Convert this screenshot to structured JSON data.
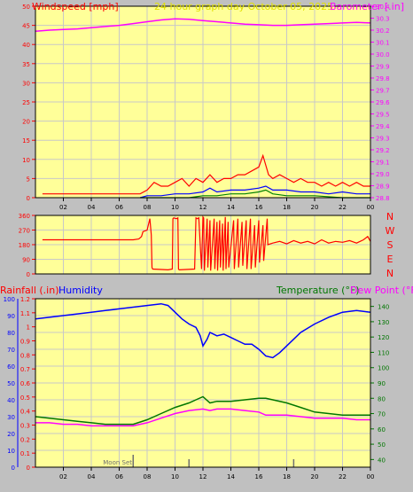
{
  "colors": {
    "background": "#c0c0c0",
    "panel": "#ffff99",
    "grid": "#c8c8c8",
    "windspeed": "#ff0000",
    "wind_avg": "#0000ff",
    "wind_low": "#008000",
    "barometer": "#ff00ff",
    "title": "#e0e000",
    "direction": "#ff0000",
    "rain_label": "#ff0000",
    "humidity": "#0000ff",
    "temperature": "#007700",
    "dewpoint": "#ff00ff",
    "moon": "#707070"
  },
  "chart_data": [
    {
      "type": "line",
      "name": "wind-barometer",
      "title": "24 hour graph day   October 05, 2025",
      "left_label": "Windspeed [mph]",
      "right_label": "Barometer [.in]",
      "x_ticks": [
        "02",
        "04",
        "06",
        "08",
        "10",
        "12",
        "14",
        "16",
        "18",
        "20",
        "22",
        "00"
      ],
      "xlim": [
        0,
        24
      ],
      "ylim_left": [
        0,
        50
      ],
      "yticks_left": [
        0,
        5,
        10,
        15,
        20,
        25,
        30,
        35,
        40,
        45,
        50
      ],
      "ylim_right": [
        28.8,
        30.4
      ],
      "yticks_right": [
        "28.8",
        "28.9",
        "29.0",
        "29.1",
        "29.2",
        "29.3",
        "29.4",
        "29.5",
        "29.6",
        "29.7",
        "29.8",
        "29.9",
        "30.0",
        "30.1",
        "30.2",
        "30.3",
        "30.4"
      ],
      "series": [
        {
          "key": "barometer",
          "axis": "right",
          "x": [
            0,
            1,
            2,
            3,
            4,
            5,
            6,
            7,
            8,
            9,
            10,
            11,
            12,
            13,
            14,
            15,
            16,
            17,
            18,
            19,
            20,
            21,
            22,
            23,
            24
          ],
          "y": [
            30.19,
            30.2,
            30.205,
            30.21,
            30.22,
            30.23,
            30.24,
            30.255,
            30.27,
            30.285,
            30.295,
            30.29,
            30.28,
            30.27,
            30.26,
            30.25,
            30.245,
            30.24,
            30.24,
            30.245,
            30.25,
            30.255,
            30.26,
            30.265,
            30.26
          ]
        },
        {
          "key": "windspeed",
          "axis": "left",
          "x": [
            0.5,
            7.5,
            8,
            8.5,
            9,
            9.5,
            10,
            10.5,
            11,
            11.5,
            12,
            12.5,
            13,
            13.5,
            14,
            14.5,
            15,
            15.5,
            16,
            16.3,
            16.7,
            17,
            17.5,
            18,
            18.5,
            19,
            19.5,
            20,
            20.5,
            21,
            21.5,
            22,
            22.5,
            23,
            23.5,
            24
          ],
          "y": [
            1,
            1,
            2,
            4,
            3,
            3,
            4,
            5,
            3,
            5,
            4,
            6,
            4,
            5,
            5,
            6,
            6,
            7,
            8,
            11,
            6,
            5,
            6,
            5,
            4,
            5,
            4,
            4,
            3,
            4,
            3,
            4,
            3,
            4,
            3,
            3
          ]
        },
        {
          "key": "wind_avg",
          "axis": "left",
          "x": [
            7.5,
            8,
            9,
            10,
            11,
            12,
            12.5,
            13,
            14,
            15,
            16,
            16.5,
            17,
            18,
            19,
            20,
            21,
            22,
            23,
            24
          ],
          "y": [
            0,
            0.5,
            0.5,
            1,
            1,
            1.5,
            2.5,
            1.5,
            2,
            2,
            2.5,
            3,
            2,
            2,
            1.5,
            1.5,
            1,
            1.5,
            1,
            1
          ]
        },
        {
          "key": "wind_low",
          "axis": "left",
          "x": [
            7.5,
            9,
            11,
            12,
            13,
            14,
            15,
            16,
            16.5,
            17,
            18,
            20,
            22,
            24
          ],
          "y": [
            0,
            0,
            0,
            0.5,
            0.5,
            1,
            1,
            1.5,
            2,
            1,
            0.5,
            0.5,
            0,
            0
          ]
        }
      ]
    },
    {
      "type": "line",
      "name": "wind-direction",
      "x_ticks": [
        "02",
        "04",
        "06",
        "08",
        "10",
        "12",
        "14",
        "16",
        "18",
        "20",
        "22",
        "00"
      ],
      "xlim": [
        0,
        24
      ],
      "ylim": [
        0,
        360
      ],
      "yticks": [
        0,
        90,
        180,
        270,
        360
      ],
      "compass": [
        "N",
        "W",
        "S",
        "E",
        "N"
      ],
      "series": [
        {
          "key": "direction",
          "x": [
            0.5,
            7,
            7.4,
            7.6,
            7.7,
            8,
            8.2,
            8.3,
            8.35,
            8.4,
            9.5,
            9.8,
            9.85,
            9.9,
            10.1,
            10.2,
            10.25,
            10.3,
            11.4,
            11.5,
            11.6,
            11.7,
            11.9,
            12,
            12.05,
            12.1,
            12.3,
            12.35,
            12.5,
            12.55,
            12.8,
            12.85,
            13,
            13.05,
            13.2,
            13.25,
            13.4,
            13.45,
            13.6,
            13.65,
            13.8,
            13.85,
            14.2,
            14.25,
            14.5,
            14.55,
            14.8,
            14.85,
            15.1,
            15.15,
            15.4,
            15.45,
            15.7,
            15.75,
            16,
            16.05,
            16.3,
            16.35,
            16.6,
            16.65,
            17,
            17.5,
            18,
            18.5,
            19,
            19.5,
            20,
            20.5,
            21,
            21.5,
            22,
            22.5,
            23,
            23.5,
            23.8,
            24
          ],
          "y": [
            210,
            210,
            215,
            230,
            260,
            270,
            340,
            240,
            40,
            30,
            25,
            30,
            340,
            345,
            340,
            345,
            30,
            25,
            30,
            345,
            340,
            345,
            30,
            350,
            345,
            20,
            340,
            40,
            330,
            20,
            340,
            30,
            320,
            20,
            330,
            40,
            310,
            20,
            350,
            30,
            320,
            40,
            330,
            30,
            340,
            40,
            320,
            50,
            330,
            30,
            340,
            30,
            300,
            40,
            330,
            70,
            300,
            80,
            340,
            180,
            190,
            200,
            185,
            205,
            190,
            200,
            185,
            210,
            190,
            200,
            195,
            205,
            190,
            210,
            230,
            200
          ]
        }
      ]
    },
    {
      "type": "line",
      "name": "rain-humidity-temp",
      "left_label_rain": "Rainfall (.in)",
      "left_label_humidity": "Humidity",
      "right_label_temp": "Temperature (°F)",
      "right_label_dew": "Dew Point (°F)",
      "moon_label": "Moon Set",
      "x_ticks": [
        "02",
        "04",
        "06",
        "08",
        "10",
        "12",
        "14",
        "16",
        "18",
        "20",
        "22",
        "00"
      ],
      "xlim": [
        0,
        24
      ],
      "ylim_humidity": [
        0,
        100
      ],
      "yticks_humidity": [
        0,
        10,
        20,
        30,
        40,
        50,
        60,
        70,
        80,
        90,
        100
      ],
      "ylim_rain": [
        0,
        1.2
      ],
      "yticks_rain": [
        "0",
        "0.1",
        "0.2",
        "0.3",
        "0.4",
        "0.5",
        "0.6",
        "0.7",
        "0.8",
        "0.9",
        "1",
        "1.1",
        "1.2"
      ],
      "ylim_temp": [
        35,
        145
      ],
      "yticks_temp": [
        40,
        50,
        60,
        70,
        80,
        90,
        100,
        110,
        120,
        130,
        140
      ],
      "moon_set_hour": 7,
      "series": [
        {
          "key": "humidity",
          "axis": "humidity",
          "x": [
            0,
            1,
            2,
            3,
            4,
            5,
            6,
            7,
            8,
            9,
            9.5,
            10,
            10.5,
            11,
            11.5,
            11.8,
            12,
            12.3,
            12.5,
            13,
            13.5,
            14,
            14.5,
            15,
            15.5,
            16,
            16.5,
            17,
            17.5,
            18,
            19,
            20,
            21,
            22,
            23,
            24
          ],
          "y": [
            88,
            89,
            90,
            91,
            92,
            93,
            94,
            95,
            96,
            97,
            96,
            92,
            88,
            85,
            83,
            78,
            72,
            76,
            80,
            78,
            79,
            77,
            75,
            73,
            73,
            70,
            66,
            65,
            68,
            72,
            80,
            85,
            89,
            92,
            93,
            92
          ]
        },
        {
          "key": "temperature",
          "axis": "temp",
          "x": [
            0,
            1,
            2,
            3,
            4,
            5,
            6,
            7,
            8,
            9,
            10,
            11,
            11.5,
            12,
            12.5,
            13,
            14,
            15,
            16,
            16.5,
            17,
            18,
            19,
            20,
            21,
            22,
            23,
            24
          ],
          "y": [
            68,
            67,
            66,
            65,
            64,
            63,
            63,
            63,
            66,
            70,
            74,
            77,
            79,
            81,
            77,
            78,
            78,
            79,
            80,
            80,
            79,
            77,
            74,
            71,
            70,
            69,
            69,
            69
          ]
        },
        {
          "key": "dewpoint",
          "axis": "temp",
          "x": [
            0,
            1,
            2,
            3,
            4,
            5,
            6,
            7,
            8,
            9,
            10,
            11,
            12,
            12.5,
            13,
            14,
            15,
            16,
            16.5,
            17,
            18,
            19,
            20,
            21,
            22,
            23,
            24
          ],
          "y": [
            64,
            64,
            63,
            63,
            62,
            62,
            62,
            62,
            64,
            67,
            70,
            72,
            73,
            72,
            73,
            73,
            72,
            71,
            69,
            69,
            69,
            68,
            67,
            67,
            67,
            66,
            66
          ]
        }
      ]
    }
  ]
}
